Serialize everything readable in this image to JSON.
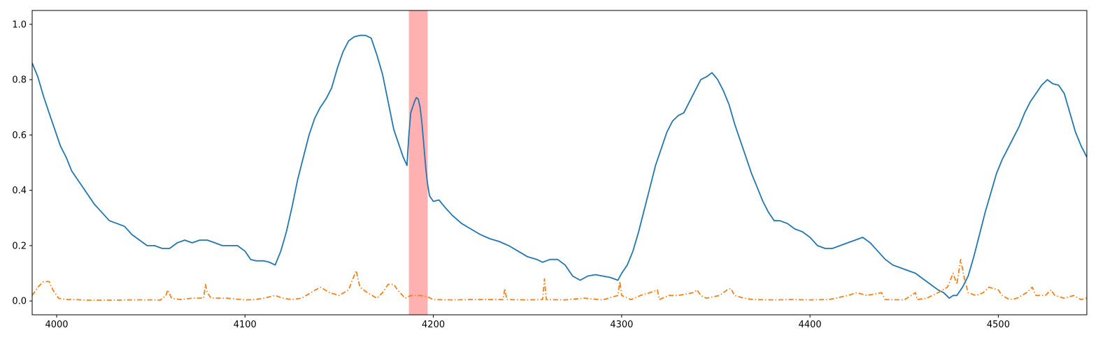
{
  "chart_data": {
    "type": "line",
    "title": "",
    "xlabel": "",
    "ylabel": "",
    "xlim": [
      3987,
      4547
    ],
    "ylim": [
      -0.05,
      1.05
    ],
    "grid": false,
    "x_ticks": [
      4000,
      4100,
      4200,
      4300,
      4400,
      4500
    ],
    "y_ticks": [
      0.0,
      0.2,
      0.4,
      0.6,
      0.8,
      1.0
    ],
    "x_tick_labels": [
      "4000",
      "4100",
      "4200",
      "4300",
      "4400",
      "4500"
    ],
    "y_tick_labels": [
      "0.0",
      "0.2",
      "0.4",
      "0.6",
      "0.8",
      "1.0"
    ],
    "highlight_span": {
      "x_start": 4187,
      "x_end": 4197,
      "color": "#ff9e9e"
    },
    "series": [
      {
        "color": "#1f77b4",
        "style": "solid",
        "points": [
          [
            3987,
            0.86
          ],
          [
            3990,
            0.81
          ],
          [
            3993,
            0.74
          ],
          [
            3996,
            0.68
          ],
          [
            3999,
            0.62
          ],
          [
            4002,
            0.56
          ],
          [
            4005,
            0.52
          ],
          [
            4008,
            0.47
          ],
          [
            4012,
            0.43
          ],
          [
            4016,
            0.39
          ],
          [
            4020,
            0.35
          ],
          [
            4024,
            0.32
          ],
          [
            4028,
            0.29
          ],
          [
            4032,
            0.28
          ],
          [
            4036,
            0.27
          ],
          [
            4040,
            0.24
          ],
          [
            4044,
            0.22
          ],
          [
            4048,
            0.2
          ],
          [
            4052,
            0.2
          ],
          [
            4056,
            0.19
          ],
          [
            4060,
            0.19
          ],
          [
            4064,
            0.21
          ],
          [
            4068,
            0.22
          ],
          [
            4072,
            0.21
          ],
          [
            4076,
            0.22
          ],
          [
            4080,
            0.22
          ],
          [
            4084,
            0.21
          ],
          [
            4088,
            0.2
          ],
          [
            4092,
            0.2
          ],
          [
            4096,
            0.2
          ],
          [
            4100,
            0.18
          ],
          [
            4103,
            0.15
          ],
          [
            4106,
            0.145
          ],
          [
            4110,
            0.145
          ],
          [
            4113,
            0.14
          ],
          [
            4116,
            0.13
          ],
          [
            4119,
            0.18
          ],
          [
            4122,
            0.25
          ],
          [
            4125,
            0.34
          ],
          [
            4128,
            0.44
          ],
          [
            4131,
            0.52
          ],
          [
            4134,
            0.6
          ],
          [
            4137,
            0.66
          ],
          [
            4140,
            0.7
          ],
          [
            4143,
            0.73
          ],
          [
            4146,
            0.77
          ],
          [
            4149,
            0.84
          ],
          [
            4152,
            0.9
          ],
          [
            4155,
            0.94
          ],
          [
            4158,
            0.955
          ],
          [
            4161,
            0.96
          ],
          [
            4164,
            0.96
          ],
          [
            4167,
            0.95
          ],
          [
            4170,
            0.89
          ],
          [
            4173,
            0.82
          ],
          [
            4176,
            0.72
          ],
          [
            4179,
            0.62
          ],
          [
            4182,
            0.56
          ],
          [
            4184,
            0.52
          ],
          [
            4186,
            0.49
          ],
          [
            4187,
            0.6
          ],
          [
            4188,
            0.68
          ],
          [
            4190,
            0.72
          ],
          [
            4191,
            0.735
          ],
          [
            4192,
            0.73
          ],
          [
            4193,
            0.7
          ],
          [
            4194,
            0.64
          ],
          [
            4195,
            0.56
          ],
          [
            4196,
            0.48
          ],
          [
            4197,
            0.42
          ],
          [
            4198,
            0.38
          ],
          [
            4200,
            0.36
          ],
          [
            4203,
            0.365
          ],
          [
            4206,
            0.34
          ],
          [
            4210,
            0.31
          ],
          [
            4215,
            0.28
          ],
          [
            4220,
            0.26
          ],
          [
            4225,
            0.24
          ],
          [
            4230,
            0.225
          ],
          [
            4235,
            0.215
          ],
          [
            4240,
            0.2
          ],
          [
            4245,
            0.18
          ],
          [
            4250,
            0.16
          ],
          [
            4255,
            0.15
          ],
          [
            4258,
            0.14
          ],
          [
            4262,
            0.15
          ],
          [
            4266,
            0.15
          ],
          [
            4270,
            0.13
          ],
          [
            4274,
            0.09
          ],
          [
            4278,
            0.075
          ],
          [
            4282,
            0.09
          ],
          [
            4286,
            0.095
          ],
          [
            4290,
            0.09
          ],
          [
            4294,
            0.085
          ],
          [
            4298,
            0.075
          ],
          [
            4300,
            0.1
          ],
          [
            4303,
            0.13
          ],
          [
            4306,
            0.18
          ],
          [
            4309,
            0.25
          ],
          [
            4312,
            0.33
          ],
          [
            4315,
            0.41
          ],
          [
            4318,
            0.49
          ],
          [
            4321,
            0.55
          ],
          [
            4324,
            0.61
          ],
          [
            4327,
            0.65
          ],
          [
            4330,
            0.67
          ],
          [
            4333,
            0.68
          ],
          [
            4336,
            0.72
          ],
          [
            4339,
            0.76
          ],
          [
            4342,
            0.8
          ],
          [
            4345,
            0.81
          ],
          [
            4348,
            0.825
          ],
          [
            4351,
            0.8
          ],
          [
            4354,
            0.76
          ],
          [
            4357,
            0.71
          ],
          [
            4360,
            0.64
          ],
          [
            4363,
            0.58
          ],
          [
            4366,
            0.52
          ],
          [
            4369,
            0.46
          ],
          [
            4372,
            0.41
          ],
          [
            4375,
            0.36
          ],
          [
            4378,
            0.32
          ],
          [
            4381,
            0.29
          ],
          [
            4384,
            0.29
          ],
          [
            4388,
            0.28
          ],
          [
            4392,
            0.26
          ],
          [
            4396,
            0.25
          ],
          [
            4400,
            0.23
          ],
          [
            4404,
            0.2
          ],
          [
            4408,
            0.19
          ],
          [
            4412,
            0.19
          ],
          [
            4416,
            0.2
          ],
          [
            4420,
            0.21
          ],
          [
            4424,
            0.22
          ],
          [
            4428,
            0.23
          ],
          [
            4432,
            0.21
          ],
          [
            4436,
            0.18
          ],
          [
            4440,
            0.15
          ],
          [
            4444,
            0.13
          ],
          [
            4448,
            0.12
          ],
          [
            4452,
            0.11
          ],
          [
            4456,
            0.1
          ],
          [
            4460,
            0.08
          ],
          [
            4464,
            0.06
          ],
          [
            4468,
            0.04
          ],
          [
            4471,
            0.03
          ],
          [
            4474,
            0.01
          ],
          [
            4476,
            0.02
          ],
          [
            4478,
            0.02
          ],
          [
            4481,
            0.05
          ],
          [
            4484,
            0.09
          ],
          [
            4487,
            0.16
          ],
          [
            4490,
            0.24
          ],
          [
            4493,
            0.32
          ],
          [
            4496,
            0.39
          ],
          [
            4499,
            0.46
          ],
          [
            4502,
            0.51
          ],
          [
            4505,
            0.55
          ],
          [
            4508,
            0.59
          ],
          [
            4511,
            0.63
          ],
          [
            4514,
            0.68
          ],
          [
            4517,
            0.72
          ],
          [
            4520,
            0.75
          ],
          [
            4523,
            0.78
          ],
          [
            4526,
            0.8
          ],
          [
            4529,
            0.785
          ],
          [
            4532,
            0.78
          ],
          [
            4535,
            0.75
          ],
          [
            4538,
            0.68
          ],
          [
            4541,
            0.61
          ],
          [
            4544,
            0.56
          ],
          [
            4547,
            0.52
          ]
        ]
      },
      {
        "color": "#ff7f0e",
        "style": "dashdot",
        "points": [
          [
            3987,
            0.02
          ],
          [
            3990,
            0.05
          ],
          [
            3993,
            0.07
          ],
          [
            3996,
            0.07
          ],
          [
            3998,
            0.04
          ],
          [
            4001,
            0.01
          ],
          [
            4005,
            0.005
          ],
          [
            4010,
            0.005
          ],
          [
            4015,
            0.003
          ],
          [
            4020,
            0.003
          ],
          [
            4030,
            0.003
          ],
          [
            4040,
            0.004
          ],
          [
            4050,
            0.004
          ],
          [
            4055,
            0.003
          ],
          [
            4058,
            0.02
          ],
          [
            4059,
            0.04
          ],
          [
            4061,
            0.01
          ],
          [
            4066,
            0.005
          ],
          [
            4072,
            0.01
          ],
          [
            4078,
            0.01
          ],
          [
            4079,
            0.06
          ],
          [
            4080,
            0.03
          ],
          [
            4082,
            0.01
          ],
          [
            4090,
            0.01
          ],
          [
            4100,
            0.004
          ],
          [
            4105,
            0.005
          ],
          [
            4110,
            0.01
          ],
          [
            4116,
            0.02
          ],
          [
            4120,
            0.01
          ],
          [
            4125,
            0.005
          ],
          [
            4130,
            0.01
          ],
          [
            4135,
            0.03
          ],
          [
            4140,
            0.05
          ],
          [
            4145,
            0.03
          ],
          [
            4150,
            0.02
          ],
          [
            4155,
            0.04
          ],
          [
            4159,
            0.11
          ],
          [
            4161,
            0.05
          ],
          [
            4165,
            0.03
          ],
          [
            4170,
            0.01
          ],
          [
            4173,
            0.03
          ],
          [
            4176,
            0.06
          ],
          [
            4179,
            0.06
          ],
          [
            4181,
            0.04
          ],
          [
            4185,
            0.01
          ],
          [
            4188,
            0.02
          ],
          [
            4193,
            0.02
          ],
          [
            4197,
            0.015
          ],
          [
            4200,
            0.005
          ],
          [
            4210,
            0.004
          ],
          [
            4220,
            0.005
          ],
          [
            4230,
            0.005
          ],
          [
            4237,
            0.005
          ],
          [
            4238,
            0.045
          ],
          [
            4239,
            0.005
          ],
          [
            4250,
            0.004
          ],
          [
            4258,
            0.005
          ],
          [
            4259,
            0.08
          ],
          [
            4260,
            0.005
          ],
          [
            4270,
            0.004
          ],
          [
            4280,
            0.01
          ],
          [
            4290,
            0.004
          ],
          [
            4298,
            0.02
          ],
          [
            4299,
            0.07
          ],
          [
            4300,
            0.02
          ],
          [
            4305,
            0.005
          ],
          [
            4310,
            0.02
          ],
          [
            4315,
            0.03
          ],
          [
            4319,
            0.04
          ],
          [
            4320,
            0.005
          ],
          [
            4325,
            0.02
          ],
          [
            4330,
            0.02
          ],
          [
            4338,
            0.03
          ],
          [
            4340,
            0.04
          ],
          [
            4342,
            0.02
          ],
          [
            4345,
            0.01
          ],
          [
            4352,
            0.02
          ],
          [
            4356,
            0.04
          ],
          [
            4358,
            0.045
          ],
          [
            4360,
            0.02
          ],
          [
            4365,
            0.01
          ],
          [
            4370,
            0.005
          ],
          [
            4380,
            0.004
          ],
          [
            4390,
            0.005
          ],
          [
            4400,
            0.004
          ],
          [
            4410,
            0.005
          ],
          [
            4420,
            0.02
          ],
          [
            4425,
            0.03
          ],
          [
            4430,
            0.02
          ],
          [
            4438,
            0.03
          ],
          [
            4440,
            0.005
          ],
          [
            4450,
            0.004
          ],
          [
            4456,
            0.03
          ],
          [
            4457,
            0.005
          ],
          [
            4462,
            0.01
          ],
          [
            4468,
            0.03
          ],
          [
            4473,
            0.05
          ],
          [
            4476,
            0.1
          ],
          [
            4478,
            0.06
          ],
          [
            4480,
            0.15
          ],
          [
            4482,
            0.08
          ],
          [
            4484,
            0.03
          ],
          [
            4488,
            0.02
          ],
          [
            4492,
            0.03
          ],
          [
            4495,
            0.05
          ],
          [
            4500,
            0.04
          ],
          [
            4502,
            0.02
          ],
          [
            4506,
            0.005
          ],
          [
            4510,
            0.01
          ],
          [
            4515,
            0.03
          ],
          [
            4518,
            0.05
          ],
          [
            4520,
            0.02
          ],
          [
            4525,
            0.02
          ],
          [
            4528,
            0.04
          ],
          [
            4530,
            0.02
          ],
          [
            4535,
            0.01
          ],
          [
            4540,
            0.02
          ],
          [
            4544,
            0.005
          ],
          [
            4547,
            0.01
          ]
        ]
      }
    ]
  }
}
